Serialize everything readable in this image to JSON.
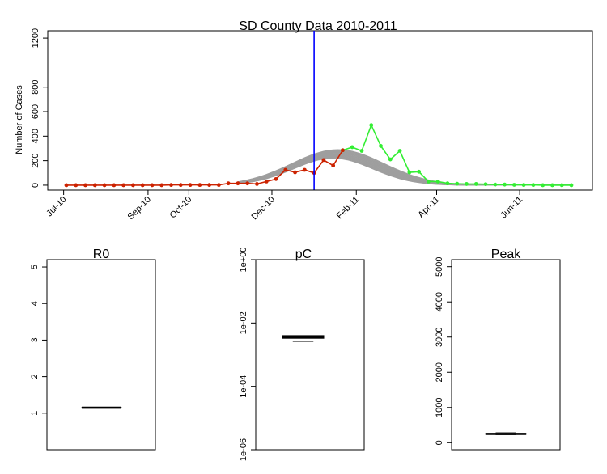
{
  "main": {
    "title": "SD County Data 2010-2011",
    "ylabel": "Number of Cases",
    "x_ticks": [
      "Jul-10",
      "Sep-10",
      "Oct-10",
      "Dec-10",
      "Feb-11",
      "Apr-11",
      "Jun-11"
    ],
    "y_ticks": [
      "0",
      "200",
      "400",
      "600",
      "800",
      "1200"
    ]
  },
  "boxes": [
    {
      "title": "R0",
      "y_ticks": [
        "1",
        "2",
        "3",
        "4",
        "5"
      ]
    },
    {
      "title": "pC",
      "y_ticks": [
        "1e-06",
        "1e-04",
        "1e-02",
        "1e+00"
      ]
    },
    {
      "title": "Peak",
      "y_ticks": [
        "0",
        "1000",
        "2000",
        "3000",
        "4000",
        "5000"
      ]
    }
  ],
  "colors": {
    "observed_before": "#cc2200",
    "observed_after": "#33ee33",
    "forecast": "#9e9e9e",
    "cutoff_line": "#0000ff"
  },
  "chart_data": [
    {
      "type": "line",
      "title": "SD County Data 2010-2011",
      "ylabel": "Number of Cases",
      "ylim": [
        -40,
        1260
      ],
      "x_unit": "week",
      "x_start": "2010-07-03",
      "x_tick_labels": [
        {
          "label": "Jul-10",
          "date": "2010-07-01"
        },
        {
          "label": "Sep-10",
          "date": "2010-09-01"
        },
        {
          "label": "Oct-10",
          "date": "2010-10-01"
        },
        {
          "label": "Dec-10",
          "date": "2010-12-01"
        },
        {
          "label": "Feb-11",
          "date": "2011-02-01"
        },
        {
          "label": "Apr-11",
          "date": "2011-04-01"
        },
        {
          "label": "Jun-11",
          "date": "2011-06-01"
        }
      ],
      "y_ticks": [
        0,
        200,
        400,
        600,
        800,
        1200
      ],
      "cutoff_date": "2011-01-01",
      "series": [
        {
          "values": [
            0,
            0,
            0,
            0,
            0,
            0,
            0,
            0,
            0,
            0,
            0,
            2,
            2,
            2,
            2,
            2,
            2,
            15,
            15,
            15,
            10,
            30,
            50,
            125,
            105,
            125,
            100,
            205,
            160,
            285
          ]
        },
        {
          "values": [
            285,
            310,
            280,
            490,
            320,
            210,
            280,
            105,
            110,
            30,
            30,
            15,
            12,
            10,
            10,
            8,
            5,
            5,
            3,
            2,
            2,
            0,
            0,
            0,
            0
          ]
        }
      ],
      "forecast_band": {
        "peak_date": "2011-01-15",
        "peak_low": 220,
        "peak_high": 290,
        "sd_weeks": 4.5
      },
      "grid": false
    },
    {
      "type": "box",
      "title": "R0",
      "ylim": [
        0.0,
        5.2
      ],
      "y_ticks": [
        1,
        2,
        3,
        4,
        5
      ],
      "median": 1.15,
      "q1": 1.15,
      "q3": 1.15,
      "whisker_low": 1.15,
      "whisker_high": 1.15
    },
    {
      "type": "box",
      "title": "pC",
      "log_scale": true,
      "ylim": [
        1e-06,
        1
      ],
      "y_ticks": [
        1e-06,
        0.0001,
        0.01,
        1
      ],
      "median": 0.0036,
      "q1": 0.0033,
      "q3": 0.004,
      "whisker_low": 0.0026,
      "whisker_high": 0.0052
    },
    {
      "type": "box",
      "title": "Peak",
      "ylim": [
        -200,
        5200
      ],
      "y_ticks": [
        0,
        1000,
        2000,
        3000,
        4000,
        5000
      ],
      "median": 250,
      "q1": 240,
      "q3": 260,
      "whisker_low": 225,
      "whisker_high": 285
    }
  ]
}
